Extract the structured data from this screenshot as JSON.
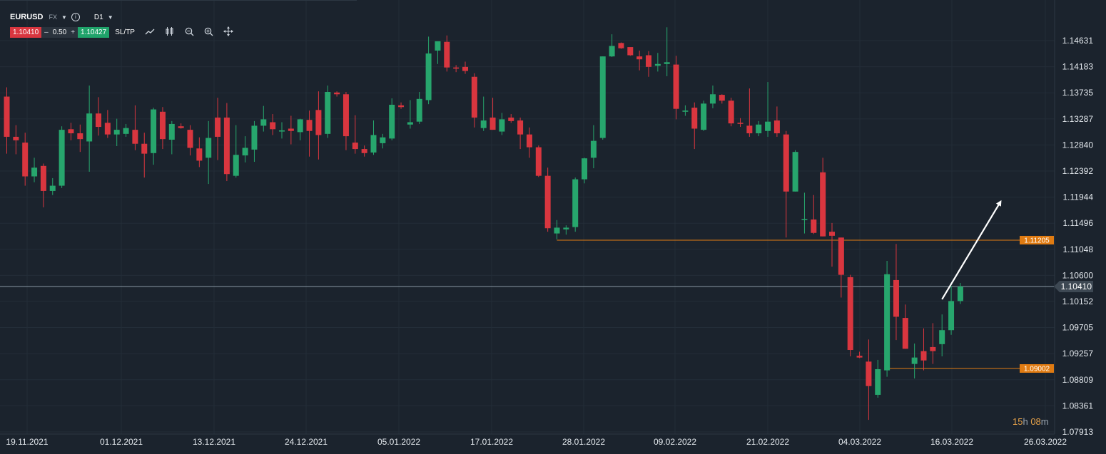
{
  "toolbar": {
    "symbol": "EURUSD",
    "market": "FX",
    "timeframe": "D1",
    "bid": "1.10410",
    "minus": "–",
    "lot": "0.50",
    "plus": "+",
    "ask": "1.10427",
    "sltp": "SL/TP",
    "icons": [
      "line-chart-icon",
      "candle-type-icon",
      "zoom-out-icon",
      "zoom-in-icon",
      "crosshair-move-icon"
    ]
  },
  "countdown": {
    "hours": "15",
    "h_unit": "h",
    "minutes": "08",
    "m_unit": "m"
  },
  "colors": {
    "background": "#1b232d",
    "bull": "#27a66d",
    "bear": "#d9363f",
    "level": "#e07b12",
    "current": "#8a97a3"
  },
  "chart_data": {
    "type": "candlestick",
    "symbol": "EURUSD",
    "timeframe": "D1",
    "y_ticks": [
      "1.14631",
      "1.14183",
      "1.13735",
      "1.13287",
      "1.12840",
      "1.12392",
      "1.11944",
      "1.11496",
      "1.11048",
      "1.10600",
      "1.10152",
      "1.09705",
      "1.09257",
      "1.08809",
      "1.08361",
      "1.07913"
    ],
    "ylim": [
      1.0788,
      1.1503
    ],
    "x_ticks": [
      "19.11.2021",
      "01.12.2021",
      "13.12.2021",
      "24.12.2021",
      "05.01.2022",
      "17.01.2022",
      "28.01.2022",
      "09.02.2022",
      "21.02.2022",
      "04.03.2022",
      "16.03.2022",
      "26.03.2022"
    ],
    "current_price": "1.10410",
    "levels": [
      {
        "label": "1.11205",
        "value": 1.11205,
        "start_index": 60
      },
      {
        "label": "1.09002",
        "value": 1.09002,
        "start_index": 96
      }
    ],
    "arrow": {
      "from_index": 102,
      "from_price": 1.1019,
      "to_index": 108.4,
      "to_price": 1.1187
    },
    "candles": [
      [
        1.1367,
        1.1383,
        1.1269,
        1.1298
      ],
      [
        1.1298,
        1.1318,
        1.1268,
        1.1292
      ],
      [
        1.1288,
        1.1305,
        1.1214,
        1.123
      ],
      [
        1.123,
        1.1262,
        1.122,
        1.1245
      ],
      [
        1.1248,
        1.1252,
        1.1177,
        1.1205
      ],
      [
        1.1205,
        1.1227,
        1.1198,
        1.1214
      ],
      [
        1.1214,
        1.1316,
        1.121,
        1.131
      ],
      [
        1.1311,
        1.1322,
        1.1292,
        1.1304
      ],
      [
        1.1304,
        1.1319,
        1.1272,
        1.1294
      ],
      [
        1.129,
        1.1386,
        1.1238,
        1.1338
      ],
      [
        1.1338,
        1.1366,
        1.13,
        1.1315
      ],
      [
        1.1322,
        1.1344,
        1.1296,
        1.1302
      ],
      [
        1.1302,
        1.1329,
        1.1282,
        1.131
      ],
      [
        1.1303,
        1.132,
        1.1298,
        1.1313
      ],
      [
        1.131,
        1.1352,
        1.1275,
        1.1286
      ],
      [
        1.1286,
        1.1305,
        1.1228,
        1.1269
      ],
      [
        1.127,
        1.1348,
        1.125,
        1.1345
      ],
      [
        1.1341,
        1.1349,
        1.1277,
        1.1294
      ],
      [
        1.1293,
        1.1325,
        1.1268,
        1.132
      ],
      [
        1.1316,
        1.1321,
        1.1312,
        1.1313
      ],
      [
        1.131,
        1.1318,
        1.1266,
        1.1279
      ],
      [
        1.1278,
        1.1297,
        1.1246,
        1.1257
      ],
      [
        1.1262,
        1.1325,
        1.1217,
        1.1296
      ],
      [
        1.1331,
        1.1365,
        1.1258,
        1.1298
      ],
      [
        1.1331,
        1.1356,
        1.1222,
        1.1234
      ],
      [
        1.1231,
        1.1318,
        1.1228,
        1.1267
      ],
      [
        1.1266,
        1.1299,
        1.1254,
        1.1279
      ],
      [
        1.1276,
        1.1325,
        1.1255,
        1.1317
      ],
      [
        1.1317,
        1.1351,
        1.1307,
        1.1328
      ],
      [
        1.1323,
        1.1337,
        1.1301,
        1.1311
      ],
      [
        1.1307,
        1.1323,
        1.1295,
        1.1309
      ],
      [
        1.1312,
        1.1334,
        1.1285,
        1.1308
      ],
      [
        1.1306,
        1.1329,
        1.1292,
        1.1328
      ],
      [
        1.1327,
        1.1343,
        1.1264,
        1.1308
      ],
      [
        1.1344,
        1.1376,
        1.1259,
        1.1301
      ],
      [
        1.1303,
        1.1386,
        1.1296,
        1.1375
      ],
      [
        1.1374,
        1.1376,
        1.1367,
        1.1371
      ],
      [
        1.1371,
        1.1375,
        1.1275,
        1.1299
      ],
      [
        1.1288,
        1.1335,
        1.1269,
        1.1277
      ],
      [
        1.1277,
        1.1283,
        1.1264,
        1.127
      ],
      [
        1.1271,
        1.1326,
        1.1267,
        1.1301
      ],
      [
        1.1287,
        1.1303,
        1.1278,
        1.1297
      ],
      [
        1.1295,
        1.1364,
        1.1292,
        1.1353
      ],
      [
        1.1352,
        1.1357,
        1.1346,
        1.1349
      ],
      [
        1.1319,
        1.1361,
        1.1312,
        1.1323
      ],
      [
        1.1324,
        1.1375,
        1.132,
        1.1363
      ],
      [
        1.1361,
        1.147,
        1.1354,
        1.1441
      ],
      [
        1.1446,
        1.146,
        1.1423,
        1.1462
      ],
      [
        1.1461,
        1.1472,
        1.141,
        1.1417
      ],
      [
        1.1417,
        1.1421,
        1.1409,
        1.1415
      ],
      [
        1.1418,
        1.1427,
        1.1406,
        1.1411
      ],
      [
        1.1401,
        1.1407,
        1.1314,
        1.1331
      ],
      [
        1.1313,
        1.1367,
        1.1308,
        1.1326
      ],
      [
        1.1331,
        1.1365,
        1.131,
        1.131
      ],
      [
        1.1307,
        1.1339,
        1.1301,
        1.1328
      ],
      [
        1.1331,
        1.1337,
        1.1322,
        1.1325
      ],
      [
        1.1326,
        1.1331,
        1.1277,
        1.1302
      ],
      [
        1.1302,
        1.1314,
        1.1262,
        1.128
      ],
      [
        1.128,
        1.1283,
        1.1229,
        1.1231
      ],
      [
        1.1231,
        1.1245,
        1.1135,
        1.1141
      ],
      [
        1.1132,
        1.1155,
        1.1122,
        1.1142
      ],
      [
        1.1139,
        1.1146,
        1.113,
        1.1142
      ],
      [
        1.1143,
        1.1228,
        1.1135,
        1.1225
      ],
      [
        1.1225,
        1.1262,
        1.1218,
        1.1261
      ],
      [
        1.1262,
        1.1318,
        1.1244,
        1.1291
      ],
      [
        1.1296,
        1.1436,
        1.1293,
        1.1436
      ],
      [
        1.1436,
        1.1474,
        1.1435,
        1.1454
      ],
      [
        1.1459,
        1.146,
        1.1449,
        1.145
      ],
      [
        1.1452,
        1.1448,
        1.1437,
        1.1438
      ],
      [
        1.1436,
        1.1446,
        1.1412,
        1.1431
      ],
      [
        1.1438,
        1.1445,
        1.1401,
        1.1418
      ],
      [
        1.142,
        1.1442,
        1.141,
        1.1423
      ],
      [
        1.1423,
        1.1486,
        1.1402,
        1.1426
      ],
      [
        1.1422,
        1.1437,
        1.1328,
        1.1346
      ],
      [
        1.1341,
        1.1352,
        1.1334,
        1.1343
      ],
      [
        1.1348,
        1.1357,
        1.1277,
        1.1312
      ],
      [
        1.131,
        1.136,
        1.1308,
        1.1355
      ],
      [
        1.1355,
        1.1386,
        1.1347,
        1.1371
      ],
      [
        1.137,
        1.1371,
        1.1355,
        1.136
      ],
      [
        1.136,
        1.1365,
        1.1316,
        1.1321
      ],
      [
        1.1322,
        1.133,
        1.1315,
        1.1321
      ],
      [
        1.1317,
        1.1381,
        1.1298,
        1.1304
      ],
      [
        1.1304,
        1.1325,
        1.1299,
        1.1319
      ],
      [
        1.1308,
        1.1392,
        1.1298,
        1.1324
      ],
      [
        1.1326,
        1.135,
        1.1298,
        1.1304
      ],
      [
        1.1302,
        1.1308,
        1.1125,
        1.1204
      ],
      [
        1.1204,
        1.1275,
        1.1204,
        1.1272
      ],
      [
        1.1156,
        1.1202,
        1.1132,
        1.1157
      ],
      [
        1.1156,
        1.1198,
        1.1131,
        1.1133
      ],
      [
        1.1237,
        1.1262,
        1.1127,
        1.1127
      ],
      [
        1.1135,
        1.115,
        1.1075,
        1.1128
      ],
      [
        1.1125,
        1.1125,
        1.1022,
        1.1061
      ],
      [
        1.1057,
        1.1061,
        1.0921,
        1.0932
      ],
      [
        1.0922,
        1.0929,
        1.0918,
        1.0919
      ],
      [
        1.0912,
        1.095,
        1.0812,
        1.087
      ],
      [
        1.0855,
        1.0915,
        1.085,
        1.0899
      ],
      [
        1.0897,
        1.1085,
        1.0886,
        1.1062
      ],
      [
        1.1052,
        1.1114,
        1.0949,
        1.0989
      ],
      [
        1.0987,
        1.101,
        1.0934,
        1.0934
      ],
      [
        1.0908,
        1.0943,
        1.0883,
        1.0919
      ],
      [
        1.093,
        1.0969,
        1.0897,
        1.0914
      ],
      [
        1.0937,
        1.0978,
        1.0908,
        1.093
      ],
      [
        1.0942,
        1.0993,
        1.0921,
        1.0966
      ],
      [
        1.0966,
        1.1042,
        1.0958,
        1.1016
      ],
      [
        1.1016,
        1.1047,
        1.1011,
        1.1041
      ]
    ]
  }
}
